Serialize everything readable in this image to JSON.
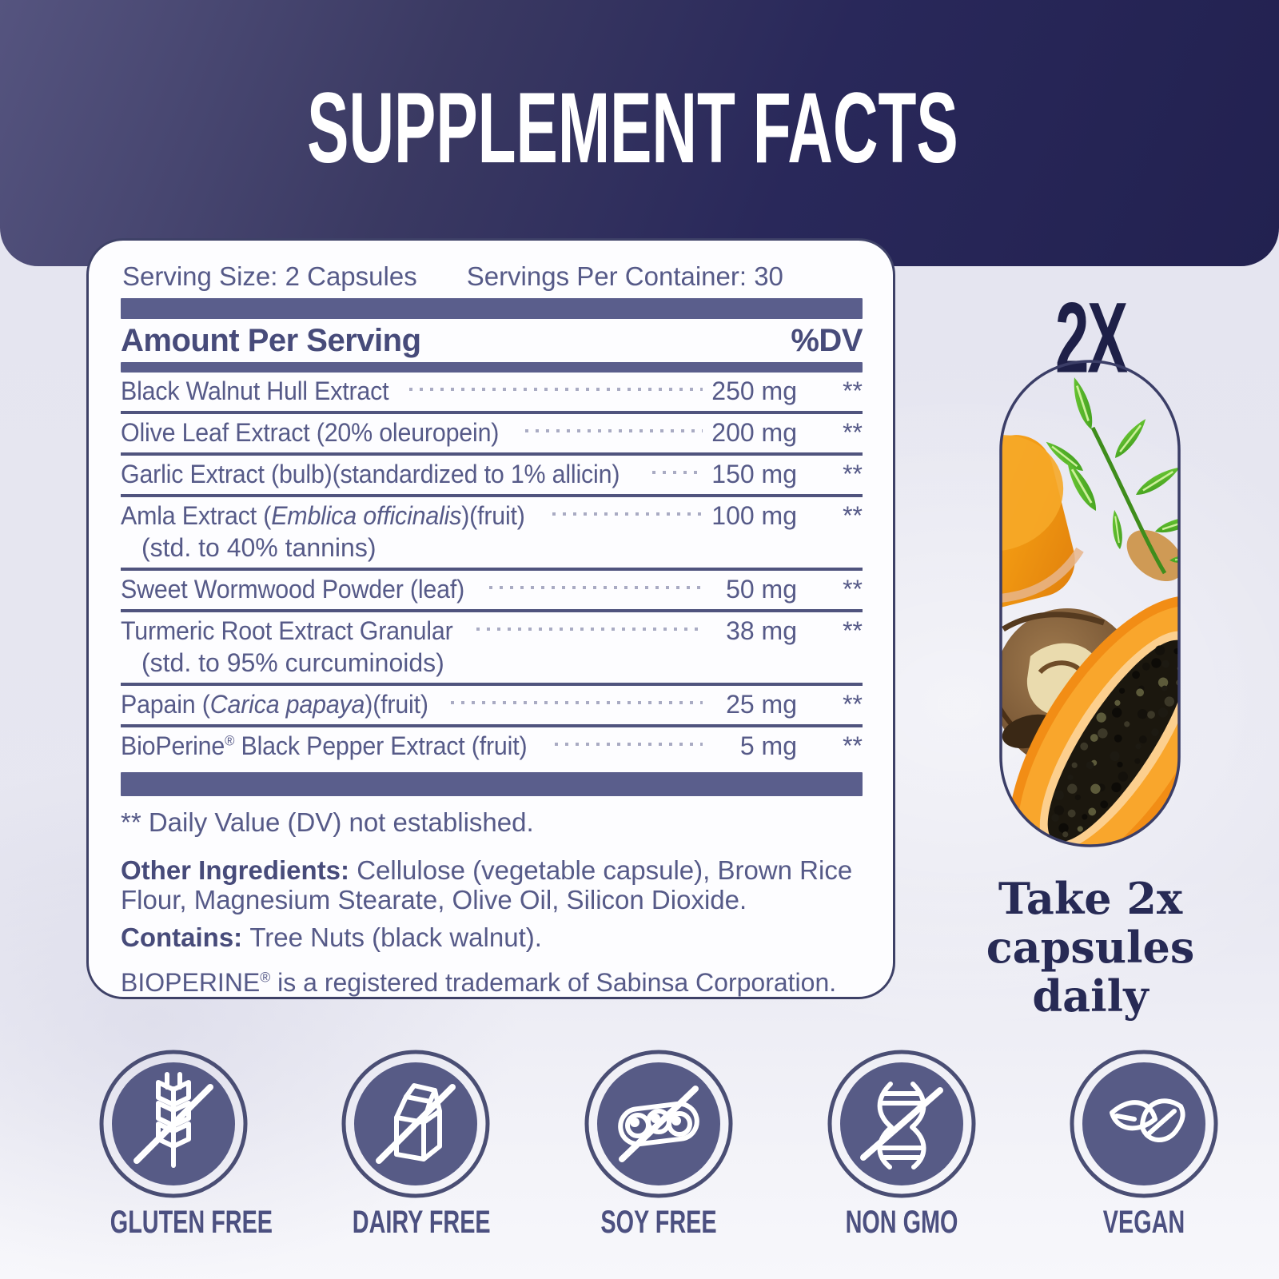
{
  "title": "SUPPLEMENT FACTS",
  "panel": {
    "serving_size": "Serving Size: 2 Capsules",
    "servings_per_container": "Servings Per Container: 30",
    "columns": {
      "amount": "Amount Per Serving",
      "dv": "%DV"
    },
    "rows": [
      {
        "parts": [
          {
            "text": "Black Walnut Hull Extract"
          }
        ],
        "amount": "250 mg",
        "dv": "**"
      },
      {
        "parts": [
          {
            "text": "Olive Leaf Extract (20% oleuropein)"
          }
        ],
        "amount": "200 mg",
        "dv": "**"
      },
      {
        "parts": [
          {
            "text": "Garlic Extract (bulb)(standardized to 1% allicin)"
          }
        ],
        "amount": "150 mg",
        "dv": "**"
      },
      {
        "parts": [
          {
            "text": "Amla Extract ("
          },
          {
            "text": "Emblica officinalis",
            "style": "italic"
          },
          {
            "text": ")(fruit)"
          }
        ],
        "sub": "(std. to 40% tannins)",
        "amount": "100 mg",
        "dv": "**"
      },
      {
        "parts": [
          {
            "text": "Sweet Wormwood Powder (leaf)"
          }
        ],
        "amount": "50 mg",
        "dv": "**"
      },
      {
        "parts": [
          {
            "text": "Turmeric Root Extract Granular"
          }
        ],
        "sub": "(std. to 95% curcuminoids)",
        "amount": "38 mg",
        "dv": "**"
      },
      {
        "parts": [
          {
            "text": "Papain ("
          },
          {
            "text": "Carica papaya",
            "style": "italic"
          },
          {
            "text": ")(fruit)"
          }
        ],
        "amount": "25 mg",
        "dv": "**"
      },
      {
        "parts": [
          {
            "text": "BioPerine"
          },
          {
            "text": "®",
            "style": "sup"
          },
          {
            "text": " Black Pepper Extract (fruit)"
          }
        ],
        "amount": "5 mg",
        "dv": "**"
      }
    ],
    "footnotes": [
      {
        "parts": [
          {
            "text": "** Daily Value (DV) not established."
          }
        ]
      },
      {
        "parts": [
          {
            "text": "Other Ingredients: ",
            "style": "bold"
          },
          {
            "text": "Cellulose (vegetable capsule), Brown Rice Flour, Magnesium Stearate, Olive Oil, Silicon Dioxide."
          }
        ]
      },
      {
        "parts": [
          {
            "text": "Contains: ",
            "style": "bold"
          },
          {
            "text": "Tree Nuts (black walnut)."
          }
        ]
      },
      {
        "parts": [
          {
            "text": "BIOPERINE"
          },
          {
            "text": "®",
            "style": "sup"
          },
          {
            "text": " is a registered trademark of Sabinsa Corporation."
          }
        ]
      }
    ]
  },
  "right_panel": {
    "multiplier": "2X",
    "capsule_ingredients": [
      "turmeric-root",
      "wormwood-leaf",
      "black-walnut",
      "papaya-half"
    ],
    "directions_lines": [
      "Take 2x",
      "capsules",
      "daily"
    ]
  },
  "badges": [
    {
      "label": "GLUTEN FREE",
      "icon": "wheat-slash-icon"
    },
    {
      "label": "DAIRY FREE",
      "icon": "milk-carton-slash-icon"
    },
    {
      "label": "SOY FREE",
      "icon": "soybean-slash-icon"
    },
    {
      "label": "NON GMO",
      "icon": "dna-slash-icon"
    },
    {
      "label": "VEGAN",
      "icon": "leaves-icon"
    }
  ],
  "colors": {
    "banner_dark": "#222150",
    "banner_light": "#55547f",
    "panel_border": "#3e4167",
    "bar": "#5a5e8c",
    "text": "#565a88",
    "text_bold": "#474b7a",
    "title_text": "#ffffff",
    "big_navy": "#1e2048",
    "badge_fill": "#575b86",
    "badge_ring": "#4a4e74",
    "background": "#e6e6f0",
    "leaf_green": "#54b526",
    "turmeric_orange": "#f29a12",
    "papaya_orange": "#f6931d"
  }
}
